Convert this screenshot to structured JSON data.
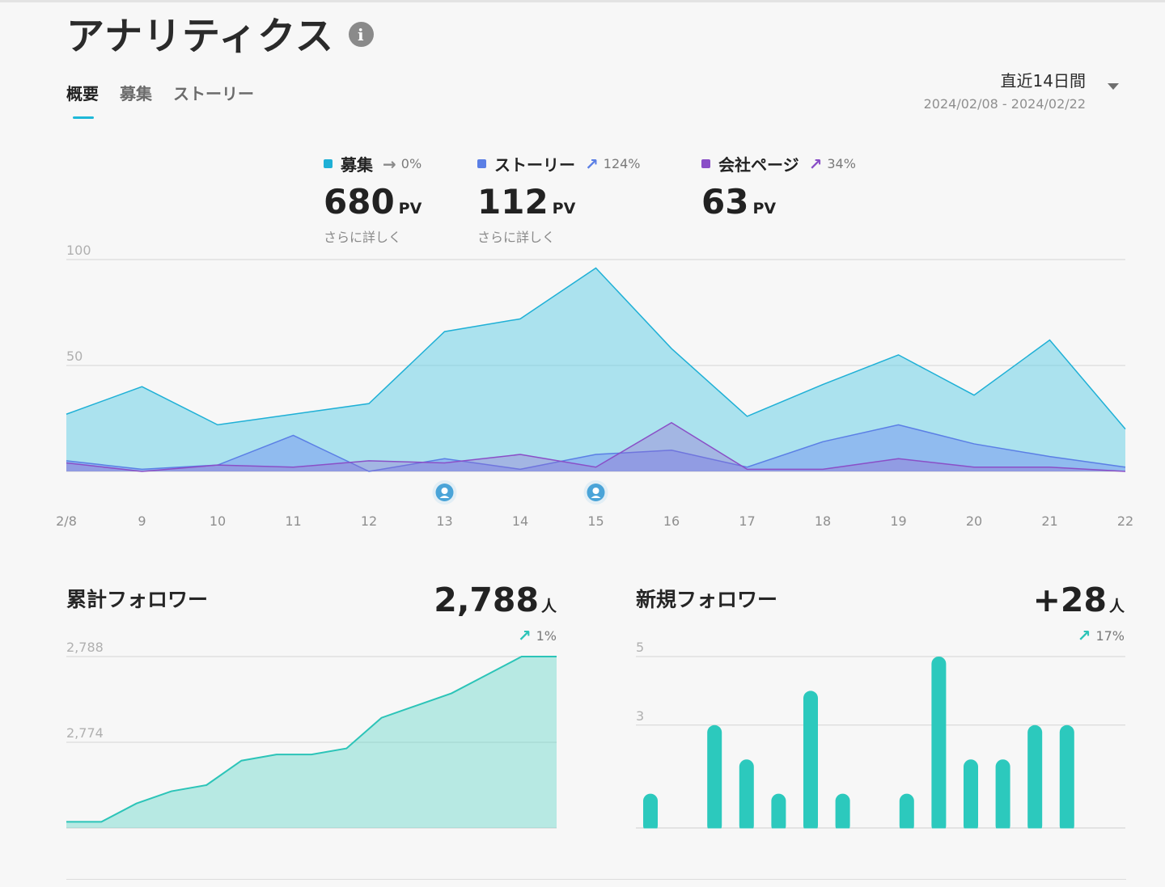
{
  "header": {
    "title": "アナリティクス",
    "info_icon": "info-icon"
  },
  "tabs": [
    {
      "label": "概要",
      "active": true
    },
    {
      "label": "募集",
      "active": false
    },
    {
      "label": "ストーリー",
      "active": false
    }
  ],
  "date_range": {
    "label": "直近14日間",
    "dates": "2024/02/08 - 2024/02/22"
  },
  "stats": [
    {
      "name": "募集",
      "color": "#1fb0d6",
      "trend_icon": "arrow-right-icon",
      "trend": "0%",
      "value": "680",
      "unit": "PV",
      "link": "さらに詳しく"
    },
    {
      "name": "ストーリー",
      "color": "#5b7fe5",
      "trend_icon": "arrow-up-right-icon",
      "trend": "124%",
      "value": "112",
      "unit": "PV",
      "link": "さらに詳しく"
    },
    {
      "name": "会社ページ",
      "color": "#8a4fc7",
      "trend_icon": "arrow-up-right-icon",
      "trend": "34%",
      "value": "63",
      "unit": "PV",
      "link": ""
    }
  ],
  "followers_total": {
    "title": "累計フォロワー",
    "value": "2,788",
    "unit": "人",
    "trend": "1%"
  },
  "followers_new": {
    "title": "新規フォロワー",
    "value": "+28",
    "unit": "人",
    "trend": "17%"
  },
  "chart_data": [
    {
      "type": "area",
      "x": [
        "2/8",
        "9",
        "10",
        "11",
        "12",
        "13",
        "14",
        "15",
        "16",
        "17",
        "18",
        "19",
        "20",
        "21",
        "22"
      ],
      "yticks": [
        100,
        50
      ],
      "ylim": [
        0,
        100
      ],
      "series": [
        {
          "name": "募集",
          "color": "#1fb0d6",
          "fill": "rgba(96,205,230,0.5)",
          "values": [
            27,
            40,
            22,
            27,
            32,
            66,
            72,
            96,
            58,
            26,
            41,
            55,
            36,
            62,
            20
          ]
        },
        {
          "name": "ストーリー",
          "color": "#5b7fe5",
          "fill": "rgba(110,140,240,0.45)",
          "values": [
            5,
            1,
            3,
            17,
            0,
            6,
            1,
            8,
            10,
            2,
            14,
            22,
            13,
            7,
            2
          ]
        },
        {
          "name": "会社ページ",
          "color": "#8a4fc7",
          "fill": "rgba(150,100,205,0.35)",
          "values": [
            4,
            0,
            3,
            2,
            5,
            4,
            8,
            2,
            23,
            1,
            1,
            6,
            2,
            2,
            0
          ]
        }
      ],
      "markers": [
        {
          "x": "13",
          "icon": "user-avatar-icon"
        },
        {
          "x": "15",
          "icon": "user-avatar-icon"
        }
      ],
      "grid": true
    },
    {
      "type": "area",
      "yticks": [
        "2,788",
        "2,774"
      ],
      "ylim": [
        2760,
        2788
      ],
      "values": [
        2761,
        2761,
        2764,
        2766,
        2767,
        2771,
        2772,
        2772,
        2773,
        2778,
        2780,
        2782,
        2785,
        2788,
        2788
      ],
      "color": "#2cc4b8",
      "fill": "rgba(96,215,200,0.42)",
      "grid": true
    },
    {
      "type": "bar",
      "yticks": [
        5,
        3
      ],
      "ylim": [
        0,
        5
      ],
      "values": [
        1,
        0,
        3,
        2,
        1,
        4,
        1,
        0,
        1,
        5,
        2,
        2,
        3,
        3,
        0
      ],
      "color": "#2cc9bd",
      "grid": true
    }
  ]
}
